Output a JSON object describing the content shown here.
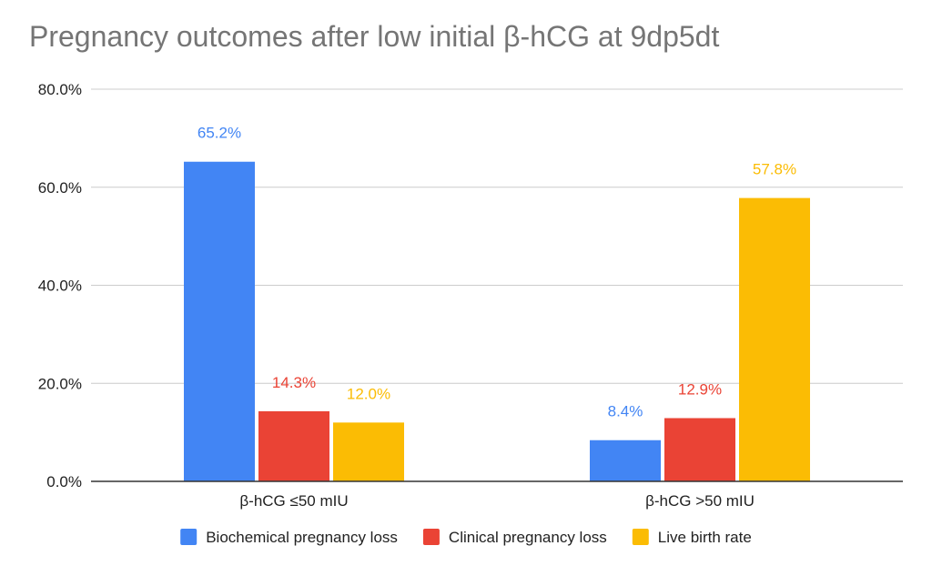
{
  "chart_data": {
    "type": "bar",
    "title": "Pregnancy outcomes after low initial β-hCG at 9dp5dt",
    "xlabel": "",
    "ylabel": "",
    "categories": [
      "β-hCG ≤50 mIU",
      "β-hCG >50 mIU"
    ],
    "ylim": [
      0,
      80
    ],
    "yticks": [
      0,
      20,
      40,
      60,
      80
    ],
    "ytick_labels": [
      "0.0%",
      "20.0%",
      "40.0%",
      "60.0%",
      "80.0%"
    ],
    "grid": true,
    "legend_position": "bottom",
    "series": [
      {
        "name": "Biochemical pregnancy loss",
        "color": "#4285F4",
        "values": [
          65.2,
          8.4
        ],
        "labels": [
          "65.2%",
          "8.4%"
        ]
      },
      {
        "name": "Clinical pregnancy loss",
        "color": "#EA4335",
        "values": [
          14.3,
          12.9
        ],
        "labels": [
          "14.3%",
          "12.9%"
        ]
      },
      {
        "name": "Live birth rate",
        "color": "#FBBC04",
        "values": [
          12.0,
          57.8
        ],
        "labels": [
          "12.0%",
          "57.8%"
        ]
      }
    ]
  }
}
